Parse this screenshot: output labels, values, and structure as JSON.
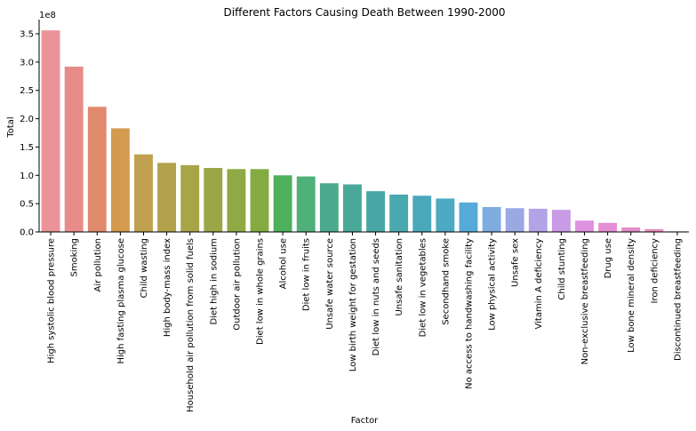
{
  "chart_data": {
    "type": "bar",
    "title": "Different Factors Causing Death Between 1990-2000",
    "xlabel": "Factor",
    "ylabel": "Total",
    "y_multiplier_label": "1e8",
    "ylim": [
      0,
      3.72
    ],
    "yticks": [
      0.0,
      0.5,
      1.0,
      1.5,
      2.0,
      2.5,
      3.0,
      3.5
    ],
    "ytick_labels": [
      "0.0",
      "0.5",
      "1.0",
      "1.5",
      "2.0",
      "2.5",
      "3.0",
      "3.5"
    ],
    "grid": false,
    "categories": [
      "High systolic blood pressure",
      "Smoking",
      "Air pollution",
      "High fasting plasma glucose",
      "Child wasting",
      "High body-mass index",
      "Household air pollution from solid fuels",
      "Diet high in sodium",
      "Outdoor air pollution",
      "Diet low in whole grains",
      "Alcohol use",
      "Diet low in fruits",
      "Unsafe water source",
      "Low birth weight for gestation",
      "Diet low in nuts and seeds",
      "Unsafe sanitation",
      "Diet low in vegetables",
      "Secondhand smoke",
      "No access to handwashing facility",
      "Low physical activity",
      "Unsafe sex",
      "Vitamin A deficiency",
      "Child stunting",
      "Non-exclusive breastfeeding",
      "Drug use",
      "Low bone mineral density",
      "Iron deficiency",
      "Discontinued breastfeeding"
    ],
    "values": [
      3.56,
      2.92,
      2.21,
      1.83,
      1.37,
      1.22,
      1.18,
      1.13,
      1.11,
      1.11,
      1.0,
      0.98,
      0.86,
      0.84,
      0.72,
      0.66,
      0.64,
      0.59,
      0.52,
      0.44,
      0.42,
      0.41,
      0.39,
      0.2,
      0.16,
      0.08,
      0.05,
      0.01
    ],
    "colors": [
      "#ea9499",
      "#e78c88",
      "#e08a6e",
      "#d49a4e",
      "#bfa04e",
      "#b1a24b",
      "#a7a547",
      "#9aa747",
      "#8fa944",
      "#84ab41",
      "#4fb05b",
      "#4fb07a",
      "#4caa8c",
      "#4aa898",
      "#48a7a4",
      "#49a9af",
      "#4aa8b9",
      "#4ea9c2",
      "#56aad8",
      "#7eacde",
      "#9aa9e4",
      "#b1a3e6",
      "#c99be4",
      "#dd93e2",
      "#e48ed6",
      "#e48ec9",
      "#e68eba",
      "#e890ac"
    ]
  }
}
